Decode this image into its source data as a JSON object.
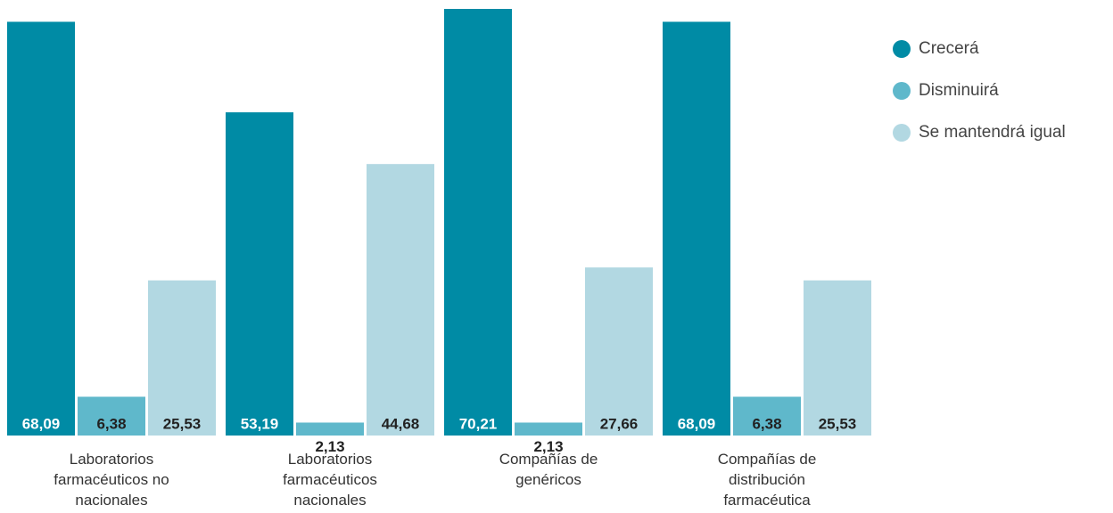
{
  "chart_data": {
    "type": "bar",
    "categories": [
      "Laboratorios farmacéuticos no nacionales",
      "Laboratorios farmacéuticos nacionales",
      "Compañías de genéricos",
      "Compañías de distribución farmacéutica"
    ],
    "series": [
      {
        "name": "Crecerá",
        "color": "#008ba5",
        "values": [
          68.09,
          53.19,
          70.21,
          68.09
        ],
        "value_labels": [
          "68,09",
          "53,19",
          "70,21",
          "68,09"
        ]
      },
      {
        "name": "Disminuirá",
        "color": "#5fb8cb",
        "values": [
          6.38,
          2.13,
          2.13,
          6.38
        ],
        "value_labels": [
          "6,38",
          "2,13",
          "2,13",
          "6,38"
        ]
      },
      {
        "name": "Se mantendrá igual",
        "color": "#b2d8e2",
        "values": [
          25.53,
          44.68,
          27.66,
          25.53
        ],
        "value_labels": [
          "25,53",
          "44,68",
          "27,66",
          "25,53"
        ]
      }
    ],
    "legend": "top-right"
  }
}
